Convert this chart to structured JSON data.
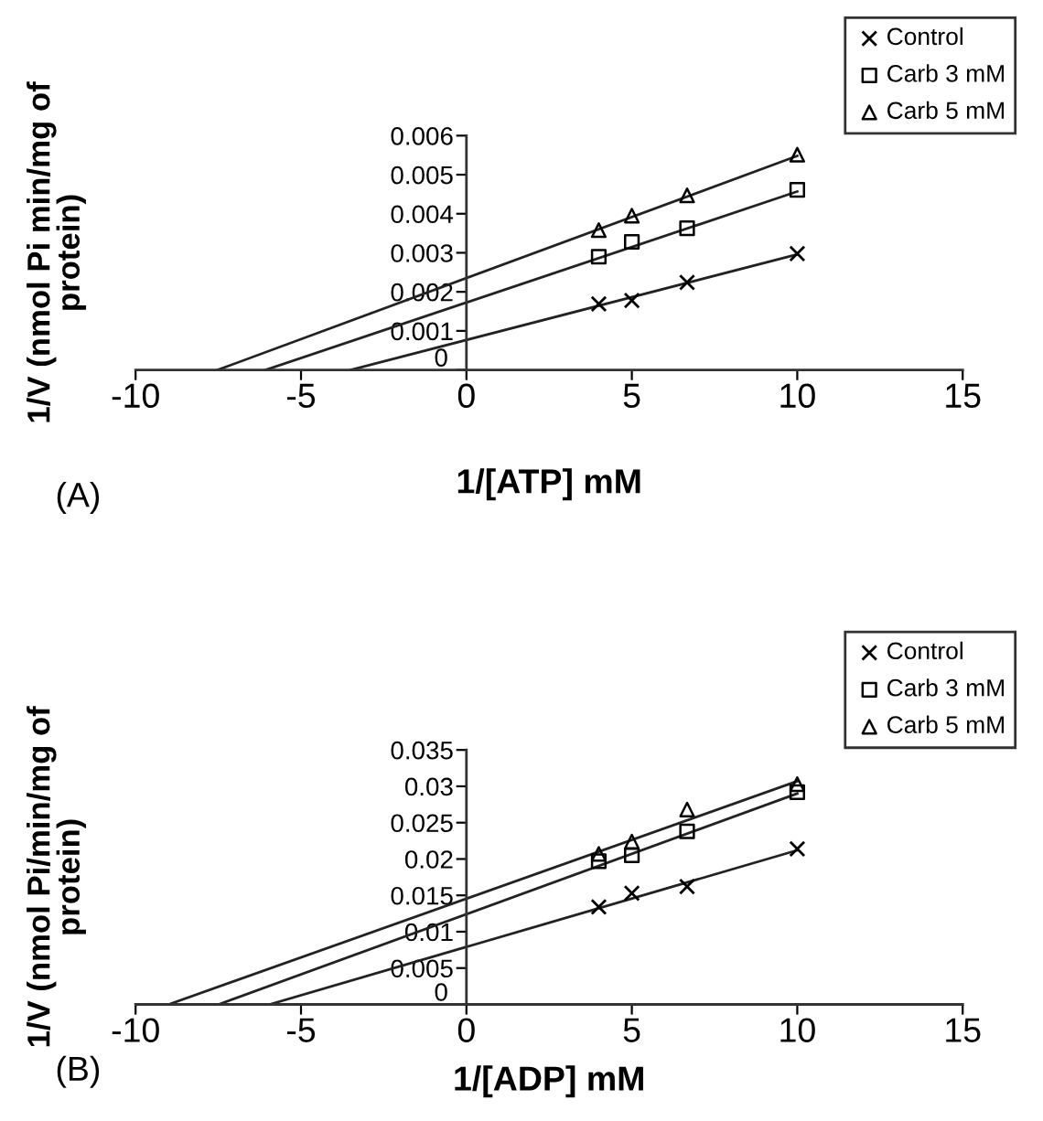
{
  "chart_data": [
    {
      "type": "scatter",
      "xlabel": "1/[ATP] mM",
      "ylabel": "1/V (nmol Pi min/mg of protein)",
      "annotations": [
        "(A)"
      ],
      "xlim": [
        -10,
        15
      ],
      "xticks": [
        -10,
        -5,
        0,
        5,
        10,
        15
      ],
      "ylim": [
        0,
        0.006
      ],
      "yticks": [
        0,
        0.001,
        0.002,
        0.003,
        0.004,
        0.005,
        0.006
      ],
      "grid": false,
      "legend": "top right",
      "x": [
        4,
        5,
        6.67,
        10
      ],
      "series": [
        {
          "name": "Control",
          "marker": "cross",
          "color": "#000000",
          "values": [
            0.00169,
            0.00178,
            0.00224,
            0.00298
          ]
        },
        {
          "name": "Carb 3 mM",
          "marker": "square",
          "color": "#000000",
          "values": [
            0.0029,
            0.00328,
            0.00363,
            0.00461
          ]
        },
        {
          "name": "Carb 5 mM",
          "marker": "triangle",
          "color": "#000000",
          "values": [
            0.00358,
            0.00395,
            0.00447,
            0.00551
          ]
        },
        {
          "type": "line",
          "line_style": "solid",
          "color": "#222222",
          "x": [
            -3.5,
            10
          ],
          "values": [
            0,
            0.00296
          ]
        },
        {
          "type": "line",
          "line_style": "solid",
          "color": "#222222",
          "x": [
            -6.07,
            10
          ],
          "values": [
            0,
            0.00457
          ]
        },
        {
          "type": "line",
          "line_style": "solid",
          "color": "#222222",
          "x": [
            -7.52,
            10
          ],
          "values": [
            0,
            0.00548
          ]
        }
      ]
    },
    {
      "type": "scatter",
      "xlabel": "1/[ADP] mM",
      "ylabel": "1/V (nmol Pi/min/mg of protein)",
      "annotations": [
        "(B)"
      ],
      "xlim": [
        -10,
        15
      ],
      "xticks": [
        -10,
        -5,
        0,
        5,
        10,
        15
      ],
      "ylim": [
        0,
        0.035
      ],
      "yticks": [
        0,
        0.005,
        0.01,
        0.015,
        0.02,
        0.025,
        0.03,
        0.035
      ],
      "grid": false,
      "legend": "top right",
      "x": [
        4,
        5,
        6.67,
        10
      ],
      "series": [
        {
          "name": "Control",
          "marker": "cross",
          "color": "#000000",
          "values": [
            0.0134,
            0.0153,
            0.0162,
            0.0214
          ]
        },
        {
          "name": "Carb 3 mM",
          "marker": "square",
          "color": "#000000",
          "values": [
            0.0197,
            0.0205,
            0.0238,
            0.0292
          ]
        },
        {
          "name": "Carb 5 mM",
          "marker": "triangle",
          "color": "#000000",
          "values": [
            0.0207,
            0.0224,
            0.0268,
            0.0303
          ]
        },
        {
          "type": "line",
          "line_style": "solid",
          "color": "#222222",
          "x": [
            -5.95,
            10
          ],
          "values": [
            0,
            0.0212
          ]
        },
        {
          "type": "line",
          "line_style": "solid",
          "color": "#222222",
          "x": [
            -7.49,
            10
          ],
          "values": [
            0,
            0.029
          ]
        },
        {
          "type": "line",
          "line_style": "solid",
          "color": "#222222",
          "x": [
            -9.0,
            10
          ],
          "values": [
            0,
            0.0307
          ]
        }
      ]
    }
  ]
}
